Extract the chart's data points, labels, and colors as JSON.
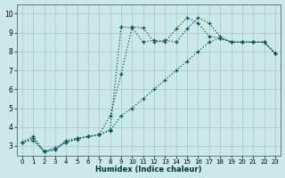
{
  "bg_color": "#cce8e8",
  "grid_color": "#aacccc",
  "line_color": "#005555",
  "xlabel": "Humidex (Indice chaleur)",
  "ylim": [
    2.5,
    10.5
  ],
  "xlim": [
    -0.5,
    23.5
  ],
  "yticks": [
    3,
    4,
    5,
    6,
    7,
    8,
    9,
    10
  ],
  "xticks": [
    0,
    1,
    2,
    3,
    4,
    5,
    6,
    7,
    8,
    9,
    10,
    11,
    12,
    13,
    14,
    15,
    16,
    17,
    18,
    19,
    20,
    21,
    22,
    23
  ],
  "line1_x": [
    0,
    1,
    2,
    3,
    4,
    5,
    6,
    7,
    8,
    9,
    10,
    11,
    12,
    13,
    14,
    15,
    16,
    17,
    18,
    19,
    20,
    21,
    22,
    23
  ],
  "line1_y": [
    3.2,
    3.5,
    2.7,
    2.8,
    3.3,
    3.4,
    3.5,
    3.6,
    3.85,
    9.3,
    9.25,
    8.5,
    8.6,
    8.5,
    9.2,
    9.8,
    9.5,
    8.8,
    8.7,
    8.5,
    8.5,
    8.5,
    8.5,
    7.9
  ],
  "line2_x": [
    0,
    1,
    2,
    3,
    4,
    5,
    6,
    7,
    8,
    9,
    10,
    11,
    12,
    13,
    14,
    15,
    16,
    17,
    18,
    19,
    20,
    21,
    22,
    23
  ],
  "line2_y": [
    3.2,
    3.3,
    2.7,
    2.9,
    3.2,
    3.35,
    3.5,
    3.6,
    4.6,
    6.8,
    9.3,
    9.25,
    8.5,
    8.6,
    8.5,
    9.2,
    9.8,
    9.5,
    8.8,
    8.5,
    8.5,
    8.5,
    8.5,
    7.9
  ],
  "line3_x": [
    0,
    1,
    2,
    3,
    4,
    5,
    6,
    7,
    8,
    9,
    10,
    11,
    12,
    13,
    14,
    15,
    16,
    17,
    18,
    19,
    20,
    21,
    22,
    23
  ],
  "line3_y": [
    3.2,
    3.4,
    2.7,
    2.8,
    3.2,
    3.4,
    3.5,
    3.6,
    3.8,
    4.6,
    5.0,
    5.5,
    6.0,
    6.5,
    7.0,
    7.5,
    8.0,
    8.5,
    8.7,
    8.5,
    8.5,
    8.5,
    8.5,
    7.9
  ]
}
